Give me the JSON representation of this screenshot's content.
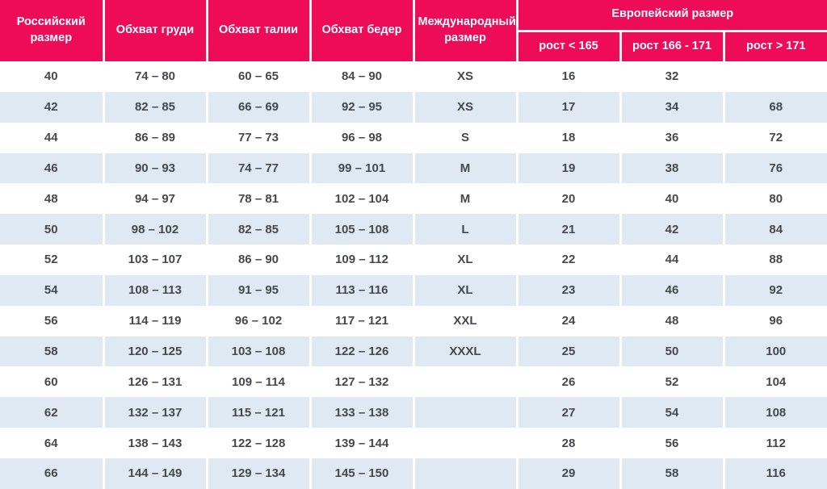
{
  "colors": {
    "accent": "#EE0B57",
    "row_alt": "#DFE9F4",
    "cell_text": "#45494E",
    "header_text": "#FFFFFF"
  },
  "header": {
    "russian": "Российский размер",
    "chest": "Обхват груди",
    "waist": "Обхват талии",
    "hips": "Обхват бедер",
    "international": "Международный размер",
    "european_group": "Европейский размер",
    "height_lt_165": "рост < 165",
    "height_166_171": "рост 166 - 171",
    "height_gt_171": "рост > 171"
  },
  "chart_data": {
    "type": "table",
    "columns": [
      "Российский размер",
      "Обхват груди",
      "Обхват талии",
      "Обхват бедер",
      "Международный размер",
      "Европейский размер — рост < 165",
      "Европейский размер — рост 166 - 171",
      "Европейский размер — рост > 171"
    ],
    "header_groups": [
      {
        "label": "Европейский размер",
        "span_columns": [
          5,
          6,
          7
        ]
      }
    ],
    "rows": [
      [
        "40",
        "74 – 80",
        "60 – 65",
        "84 – 90",
        "XS",
        "16",
        "32",
        ""
      ],
      [
        "42",
        "82 – 85",
        "66 – 69",
        "92 – 95",
        "XS",
        "17",
        "34",
        "68"
      ],
      [
        "44",
        "86 – 89",
        "77 – 73",
        "96 – 98",
        "S",
        "18",
        "36",
        "72"
      ],
      [
        "46",
        "90 – 93",
        "74 – 77",
        "99 – 101",
        "M",
        "19",
        "38",
        "76"
      ],
      [
        "48",
        "94 – 97",
        "78 – 81",
        "102 – 104",
        "M",
        "20",
        "40",
        "80"
      ],
      [
        "50",
        "98 – 102",
        "82 – 85",
        "105 – 108",
        "L",
        "21",
        "42",
        "84"
      ],
      [
        "52",
        "103 – 107",
        "86 – 90",
        "109 – 112",
        "XL",
        "22",
        "44",
        "88"
      ],
      [
        "54",
        "108 – 113",
        "91 – 95",
        "113 – 116",
        "XL",
        "23",
        "46",
        "92"
      ],
      [
        "56",
        "114 – 119",
        "96 – 102",
        "117 – 121",
        "XXL",
        "24",
        "48",
        "96"
      ],
      [
        "58",
        "120 – 125",
        "103 – 108",
        "122 – 126",
        "XXXL",
        "25",
        "50",
        "100"
      ],
      [
        "60",
        "126 – 131",
        "109 – 114",
        "127 – 132",
        "",
        "26",
        "52",
        "104"
      ],
      [
        "62",
        "132 – 137",
        "115 – 121",
        "133 – 138",
        "",
        "27",
        "54",
        "108"
      ],
      [
        "64",
        "138 – 143",
        "122 – 128",
        "139 – 144",
        "",
        "28",
        "56",
        "112"
      ],
      [
        "66",
        "144 – 149",
        "129 – 134",
        "145 – 150",
        "",
        "29",
        "58",
        "116"
      ]
    ]
  }
}
